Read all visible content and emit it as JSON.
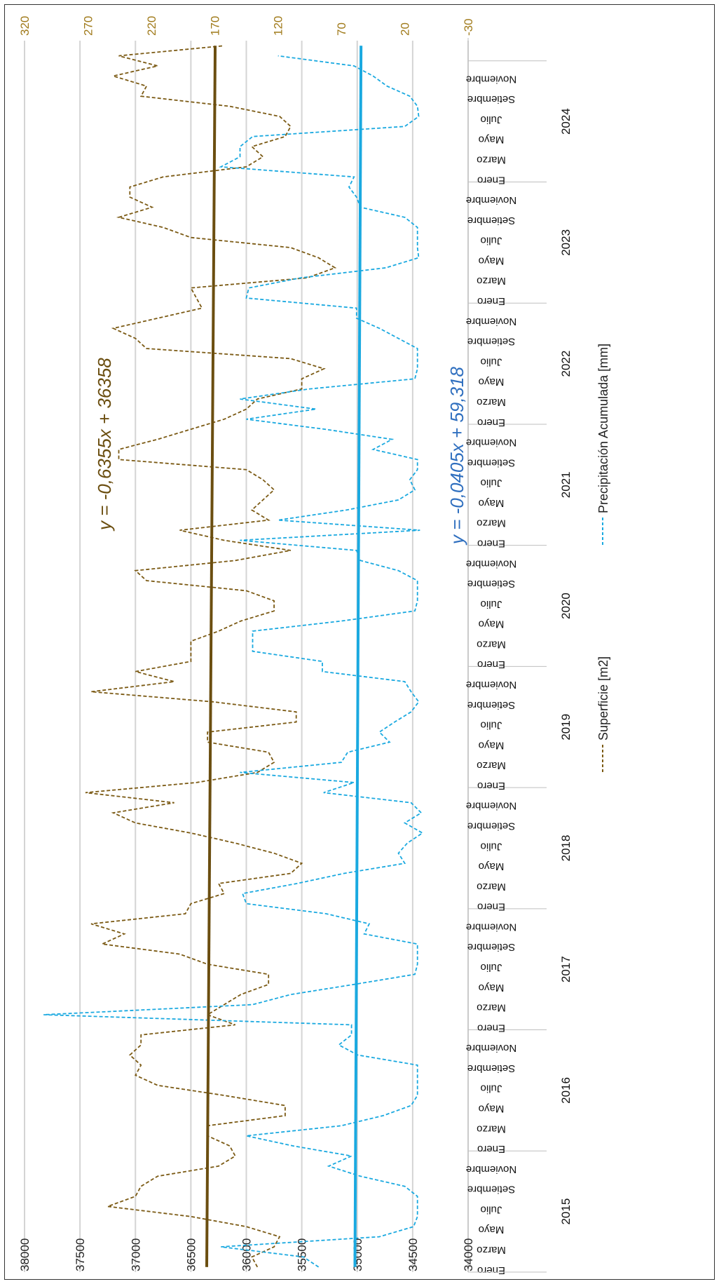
{
  "chart_data": {
    "type": "line",
    "orientation": "rotated-90-clockwise",
    "months_shown": [
      "Enero",
      "Marzo",
      "Mayo",
      "Julio",
      "Setiembre",
      "Noviembre"
    ],
    "years": [
      "2015",
      "2016",
      "2017",
      "2018",
      "2019",
      "2020",
      "2021",
      "2022",
      "2023",
      "2024"
    ],
    "left_axis": {
      "ticks": [
        "38000",
        "37500",
        "37000",
        "36500",
        "36000",
        "35500",
        "35000",
        "34500",
        "34000"
      ],
      "min": 34000,
      "max": 38000
    },
    "right_axis": {
      "ticks": [
        "320",
        "270",
        "220",
        "170",
        "120",
        "70",
        "20",
        "-30"
      ],
      "min": -30,
      "max": 320
    },
    "grid": true,
    "legend_placement": "bottom",
    "series": [
      {
        "name": "Superficie [m2]",
        "axis": "left",
        "color": "#7b5a14",
        "style": "dashed",
        "values": [
          35900,
          35950,
          35750,
          35700,
          36000,
          36500,
          37250,
          37000,
          36950,
          36800,
          36250,
          36100,
          36150,
          36350,
          36350,
          35650,
          35650,
          36200,
          36800,
          37000,
          36950,
          37050,
          36950,
          36950,
          36100,
          36350,
          36200,
          36050,
          35800,
          35800,
          36350,
          36600,
          37300,
          37100,
          37400,
          36550,
          36500,
          36200,
          36250,
          35600,
          35500,
          35750,
          36100,
          36500,
          37000,
          37200,
          36650,
          37450,
          36450,
          35900,
          35750,
          35800,
          36350,
          36350,
          35550,
          35550,
          36300,
          37400,
          36650,
          37000,
          36500,
          36500,
          36500,
          36250,
          36050,
          35750,
          35750,
          36000,
          36900,
          37000,
          36100,
          35600,
          36200,
          36600,
          35800,
          35950,
          35850,
          35750,
          35850,
          36000,
          37150,
          37150,
          36800,
          36500,
          36200,
          36000,
          35900,
          35500,
          35500,
          35300,
          35600,
          36900,
          37000,
          37200,
          36800,
          36400,
          36450,
          36500,
          35450,
          35200,
          35350,
          35600,
          36500,
          36750,
          37150,
          36850,
          37050,
          37050,
          36750,
          36000,
          35850,
          35950,
          35650,
          35600,
          35700,
          36150,
          36950,
          36900,
          37200,
          36800,
          37150,
          36200
        ]
      },
      {
        "name": "Precipitación Acumulada [mm]",
        "axis": "right",
        "color": "#1aa9e0",
        "style": "dashed",
        "values": [
          88,
          100,
          165,
          40,
          13,
          10,
          10,
          10,
          20,
          55,
          80,
          62,
          108,
          145,
          70,
          37,
          15,
          10,
          10,
          10,
          10,
          57,
          72,
          62,
          62,
          305,
          140,
          110,
          60,
          12,
          10,
          10,
          10,
          52,
          48,
          82,
          145,
          148,
          105,
          68,
          20,
          25,
          18,
          6,
          20,
          7,
          15,
          84,
          60,
          150,
          70,
          65,
          32,
          40,
          28,
          15,
          9,
          15,
          20,
          85,
          85,
          140,
          140,
          140,
          70,
          12,
          10,
          10,
          10,
          25,
          55,
          58,
          150,
          8,
          120,
          66,
          25,
          12,
          16,
          10,
          10,
          45,
          30,
          83,
          145,
          90,
          150,
          95,
          12,
          10,
          10,
          10,
          25,
          40,
          58,
          58,
          145,
          143,
          102,
          35,
          9,
          10,
          10,
          10,
          20,
          55,
          58,
          64,
          60,
          165,
          150,
          150,
          140,
          20,
          9,
          10,
          16,
          34,
          45,
          60,
          120
        ]
      }
    ],
    "trendlines": [
      {
        "series": "Superficie [m2]",
        "equation": "y = -0,6355x + 36358",
        "color": "#6b4e10",
        "start": 36357,
        "end": 36281
      },
      {
        "series": "Precipitación Acumulada [mm]",
        "equation": "y = -0,0405x + 59,318",
        "color": "#1aa9e0",
        "start": 59.3,
        "end": 54.5
      }
    ]
  }
}
